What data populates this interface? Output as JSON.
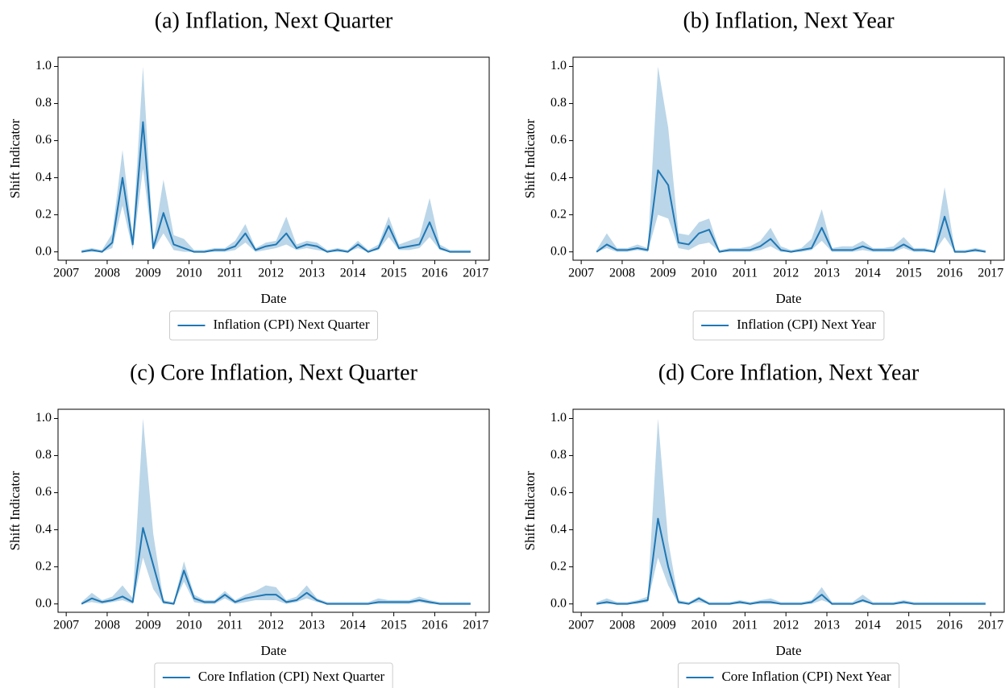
{
  "chart_data": [
    {
      "type": "line",
      "title": "(a) Inflation, Next Quarter",
      "xlabel": "Date",
      "ylabel": "Shift Indicator",
      "x": [
        2007.375,
        2007.625,
        2007.875,
        2008.125,
        2008.375,
        2008.625,
        2008.875,
        2009.125,
        2009.375,
        2009.625,
        2009.875,
        2010.125,
        2010.375,
        2010.625,
        2010.875,
        2011.125,
        2011.375,
        2011.625,
        2011.875,
        2012.125,
        2012.375,
        2012.625,
        2012.875,
        2013.125,
        2013.375,
        2013.625,
        2013.875,
        2014.125,
        2014.375,
        2014.625,
        2014.875,
        2015.125,
        2015.375,
        2015.625,
        2015.875,
        2016.125,
        2016.375,
        2016.625,
        2016.875
      ],
      "xlim": [
        2006.8,
        2017.33
      ],
      "xticks": [
        2007,
        2008,
        2009,
        2010,
        2011,
        2012,
        2013,
        2014,
        2015,
        2016,
        2017
      ],
      "ylim": [
        -0.045,
        1.05
      ],
      "yticks": [
        {
          "value": 0,
          "label": "0.0"
        },
        0.2,
        0.4,
        0.6,
        0.8,
        {
          "value": 1,
          "label": "1.0"
        }
      ],
      "series": [
        {
          "name": "Inflation (CPI) Next Quarter",
          "color": "#1f77b4",
          "values": [
            0,
            0.01,
            0,
            0.05,
            0.4,
            0.04,
            0.7,
            0.02,
            0.21,
            0.04,
            0.02,
            0,
            0,
            0.01,
            0.01,
            0.03,
            0.1,
            0.01,
            0.03,
            0.04,
            0.1,
            0.02,
            0.04,
            0.03,
            0,
            0.01,
            0,
            0.04,
            0,
            0.02,
            0.14,
            0.02,
            0.03,
            0.04,
            0.16,
            0.02,
            0,
            0,
            0
          ],
          "lower": [
            0,
            0,
            0,
            0.02,
            0.25,
            0.01,
            0.45,
            0.01,
            0.1,
            0.01,
            0,
            0,
            0,
            0,
            0,
            0.01,
            0.05,
            0,
            0.01,
            0.02,
            0.04,
            0.01,
            0.02,
            0.01,
            0,
            0,
            0,
            0.02,
            0,
            0.01,
            0.08,
            0.01,
            0.01,
            0.02,
            0.08,
            0.01,
            0,
            0,
            0
          ],
          "upper": [
            0.01,
            0.02,
            0.01,
            0.1,
            0.55,
            0.08,
            1.0,
            0.04,
            0.39,
            0.09,
            0.07,
            0.01,
            0.01,
            0.02,
            0.02,
            0.06,
            0.15,
            0.02,
            0.05,
            0.06,
            0.19,
            0.04,
            0.06,
            0.05,
            0.01,
            0.02,
            0.01,
            0.06,
            0.01,
            0.04,
            0.19,
            0.04,
            0.06,
            0.08,
            0.29,
            0.04,
            0.01,
            0.01,
            0.01
          ]
        }
      ]
    },
    {
      "type": "line",
      "title": "(b) Inflation, Next Year",
      "xlabel": "Date",
      "ylabel": "Shift Indicator",
      "x": [
        2007.375,
        2007.625,
        2007.875,
        2008.125,
        2008.375,
        2008.625,
        2008.875,
        2009.125,
        2009.375,
        2009.625,
        2009.875,
        2010.125,
        2010.375,
        2010.625,
        2010.875,
        2011.125,
        2011.375,
        2011.625,
        2011.875,
        2012.125,
        2012.375,
        2012.625,
        2012.875,
        2013.125,
        2013.375,
        2013.625,
        2013.875,
        2014.125,
        2014.375,
        2014.625,
        2014.875,
        2015.125,
        2015.375,
        2015.625,
        2015.875,
        2016.125,
        2016.375,
        2016.625,
        2016.875
      ],
      "xlim": [
        2006.8,
        2017.33
      ],
      "xticks": [
        2007,
        2008,
        2009,
        2010,
        2011,
        2012,
        2013,
        2014,
        2015,
        2016,
        2017
      ],
      "ylim": [
        -0.045,
        1.05
      ],
      "yticks": [
        {
          "value": 0,
          "label": "0.0"
        },
        0.2,
        0.4,
        0.6,
        0.8,
        {
          "value": 1,
          "label": "1.0"
        }
      ],
      "series": [
        {
          "name": "Inflation (CPI) Next Year",
          "color": "#1f77b4",
          "values": [
            0,
            0.04,
            0.01,
            0.01,
            0.02,
            0.01,
            0.44,
            0.36,
            0.05,
            0.04,
            0.1,
            0.12,
            0,
            0.01,
            0.01,
            0.01,
            0.03,
            0.07,
            0.01,
            0,
            0.01,
            0.02,
            0.13,
            0.01,
            0.01,
            0.01,
            0.03,
            0.01,
            0.01,
            0.01,
            0.04,
            0.01,
            0.01,
            0,
            0.19,
            0,
            0,
            0.01,
            0
          ],
          "lower": [
            0,
            0.02,
            0,
            0,
            0.01,
            0,
            0.2,
            0.18,
            0.02,
            0.01,
            0.04,
            0.05,
            0,
            0,
            0,
            0,
            0.01,
            0.03,
            0,
            0,
            0,
            0.01,
            0.06,
            0,
            0,
            0,
            0.01,
            0,
            0,
            0,
            0.02,
            0,
            0,
            0,
            0.08,
            0,
            0,
            0,
            0
          ],
          "upper": [
            0.01,
            0.1,
            0.02,
            0.02,
            0.04,
            0.02,
            1.0,
            0.67,
            0.1,
            0.09,
            0.16,
            0.18,
            0.01,
            0.02,
            0.02,
            0.03,
            0.06,
            0.13,
            0.03,
            0.01,
            0.02,
            0.07,
            0.23,
            0.02,
            0.03,
            0.03,
            0.06,
            0.02,
            0.02,
            0.03,
            0.08,
            0.02,
            0.02,
            0.01,
            0.35,
            0.01,
            0.01,
            0.02,
            0.01
          ]
        }
      ]
    },
    {
      "type": "line",
      "title": "(c) Core Inflation, Next Quarter",
      "xlabel": "Date",
      "ylabel": "Shift Indicator",
      "x": [
        2007.375,
        2007.625,
        2007.875,
        2008.125,
        2008.375,
        2008.625,
        2008.875,
        2009.125,
        2009.375,
        2009.625,
        2009.875,
        2010.125,
        2010.375,
        2010.625,
        2010.875,
        2011.125,
        2011.375,
        2011.625,
        2011.875,
        2012.125,
        2012.375,
        2012.625,
        2012.875,
        2013.125,
        2013.375,
        2013.625,
        2013.875,
        2014.125,
        2014.375,
        2014.625,
        2014.875,
        2015.125,
        2015.375,
        2015.625,
        2015.875,
        2016.125,
        2016.375,
        2016.625,
        2016.875
      ],
      "xlim": [
        2006.8,
        2017.33
      ],
      "xticks": [
        2007,
        2008,
        2009,
        2010,
        2011,
        2012,
        2013,
        2014,
        2015,
        2016,
        2017
      ],
      "ylim": [
        -0.045,
        1.05
      ],
      "yticks": [
        {
          "value": 0,
          "label": "0.0"
        },
        0.2,
        0.4,
        0.6,
        0.8,
        {
          "value": 1,
          "label": "1.0"
        }
      ],
      "series": [
        {
          "name": "Core Inflation (CPI) Next Quarter",
          "color": "#1f77b4",
          "values": [
            0,
            0.03,
            0.01,
            0.02,
            0.04,
            0.01,
            0.41,
            0.21,
            0.01,
            0,
            0.18,
            0.03,
            0.01,
            0.01,
            0.05,
            0.01,
            0.03,
            0.04,
            0.05,
            0.05,
            0.01,
            0.02,
            0.06,
            0.02,
            0,
            0,
            0,
            0,
            0,
            0.01,
            0.01,
            0.01,
            0.01,
            0.02,
            0.01,
            0,
            0,
            0,
            0
          ],
          "lower": [
            0,
            0.01,
            0,
            0.01,
            0.02,
            0,
            0.25,
            0.08,
            0,
            0,
            0.12,
            0.01,
            0,
            0,
            0.03,
            0,
            0.01,
            0.02,
            0.02,
            0.02,
            0,
            0.01,
            0.03,
            0.01,
            0,
            0,
            0,
            0,
            0,
            0,
            0,
            0,
            0,
            0.01,
            0,
            0,
            0,
            0,
            0
          ],
          "upper": [
            0.01,
            0.06,
            0.02,
            0.04,
            0.1,
            0.03,
            1.0,
            0.38,
            0.02,
            0.01,
            0.23,
            0.05,
            0.02,
            0.02,
            0.07,
            0.02,
            0.05,
            0.07,
            0.1,
            0.09,
            0.02,
            0.04,
            0.1,
            0.03,
            0.01,
            0.01,
            0.01,
            0.01,
            0.01,
            0.03,
            0.02,
            0.02,
            0.02,
            0.04,
            0.02,
            0.01,
            0.01,
            0.01,
            0.01
          ]
        }
      ]
    },
    {
      "type": "line",
      "title": "(d) Core Inflation, Next Year",
      "xlabel": "Date",
      "ylabel": "Shift Indicator",
      "x": [
        2007.375,
        2007.625,
        2007.875,
        2008.125,
        2008.375,
        2008.625,
        2008.875,
        2009.125,
        2009.375,
        2009.625,
        2009.875,
        2010.125,
        2010.375,
        2010.625,
        2010.875,
        2011.125,
        2011.375,
        2011.625,
        2011.875,
        2012.125,
        2012.375,
        2012.625,
        2012.875,
        2013.125,
        2013.375,
        2013.625,
        2013.875,
        2014.125,
        2014.375,
        2014.625,
        2014.875,
        2015.125,
        2015.375,
        2015.625,
        2015.875,
        2016.125,
        2016.375,
        2016.625,
        2016.875
      ],
      "xlim": [
        2006.8,
        2017.33
      ],
      "xticks": [
        2007,
        2008,
        2009,
        2010,
        2011,
        2012,
        2013,
        2014,
        2015,
        2016,
        2017
      ],
      "ylim": [
        -0.045,
        1.05
      ],
      "yticks": [
        {
          "value": 0,
          "label": "0.0"
        },
        0.2,
        0.4,
        0.6,
        0.8,
        {
          "value": 1,
          "label": "1.0"
        }
      ],
      "series": [
        {
          "name": "Core Inflation (CPI) Next Year",
          "color": "#1f77b4",
          "values": [
            0,
            0.01,
            0,
            0,
            0.01,
            0.02,
            0.46,
            0.2,
            0.01,
            0,
            0.03,
            0,
            0,
            0,
            0.01,
            0,
            0.01,
            0.01,
            0,
            0,
            0,
            0.01,
            0.05,
            0,
            0,
            0,
            0.02,
            0,
            0,
            0,
            0.01,
            0,
            0,
            0,
            0,
            0,
            0,
            0,
            0
          ],
          "lower": [
            0,
            0,
            0,
            0,
            0,
            0.01,
            0.25,
            0.1,
            0,
            0,
            0.01,
            0,
            0,
            0,
            0,
            0,
            0,
            0,
            0,
            0,
            0,
            0,
            0.02,
            0,
            0,
            0,
            0.01,
            0,
            0,
            0,
            0,
            0,
            0,
            0,
            0,
            0,
            0,
            0,
            0
          ],
          "upper": [
            0.01,
            0.03,
            0.01,
            0.01,
            0.02,
            0.04,
            1.0,
            0.34,
            0.02,
            0.01,
            0.04,
            0.01,
            0.01,
            0.01,
            0.02,
            0.01,
            0.02,
            0.03,
            0.01,
            0.01,
            0.01,
            0.02,
            0.09,
            0.01,
            0.01,
            0.01,
            0.05,
            0.01,
            0.01,
            0.01,
            0.02,
            0.01,
            0.01,
            0.01,
            0.01,
            0.01,
            0.01,
            0.01,
            0.01
          ]
        }
      ]
    }
  ]
}
